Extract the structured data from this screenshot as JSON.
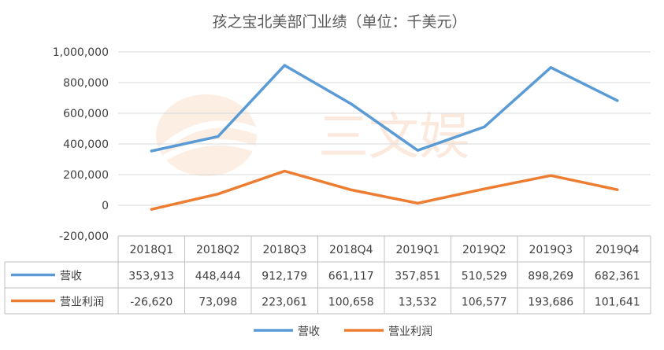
{
  "chart_data": {
    "type": "line",
    "title": "孩之宝北美部门业绩（单位：千美元）",
    "categories": [
      "2018Q1",
      "2018Q2",
      "2018Q3",
      "2018Q4",
      "2019Q1",
      "2019Q2",
      "2019Q3",
      "2019Q4"
    ],
    "series": [
      {
        "name": "营收",
        "color": "#5b9bd5",
        "values": [
          353913,
          448444,
          912179,
          661117,
          357851,
          510529,
          898269,
          682361
        ],
        "labels": [
          "353,913",
          "448,444",
          "912,179",
          "661,117",
          "357,851",
          "510,529",
          "898,269",
          "682,361"
        ]
      },
      {
        "name": "营业利润",
        "color": "#ed7d31",
        "values": [
          -26620,
          73098,
          223061,
          100658,
          13532,
          106577,
          193686,
          101641
        ],
        "labels": [
          "-26,620",
          "73,098",
          "223,061",
          "100,658",
          "13,532",
          "106,577",
          "193,686",
          "101,641"
        ]
      }
    ],
    "ylim": [
      -200000,
      1000000
    ],
    "yticks": [
      1000000,
      800000,
      600000,
      400000,
      200000,
      0,
      -200000
    ],
    "ytick_labels": [
      "1,000,000",
      "800,000",
      "600,000",
      "400,000",
      "200,000",
      "0",
      "-200,000"
    ],
    "grid": true,
    "legend": "bottom",
    "data_table": true,
    "watermark_text": "三文娱"
  }
}
